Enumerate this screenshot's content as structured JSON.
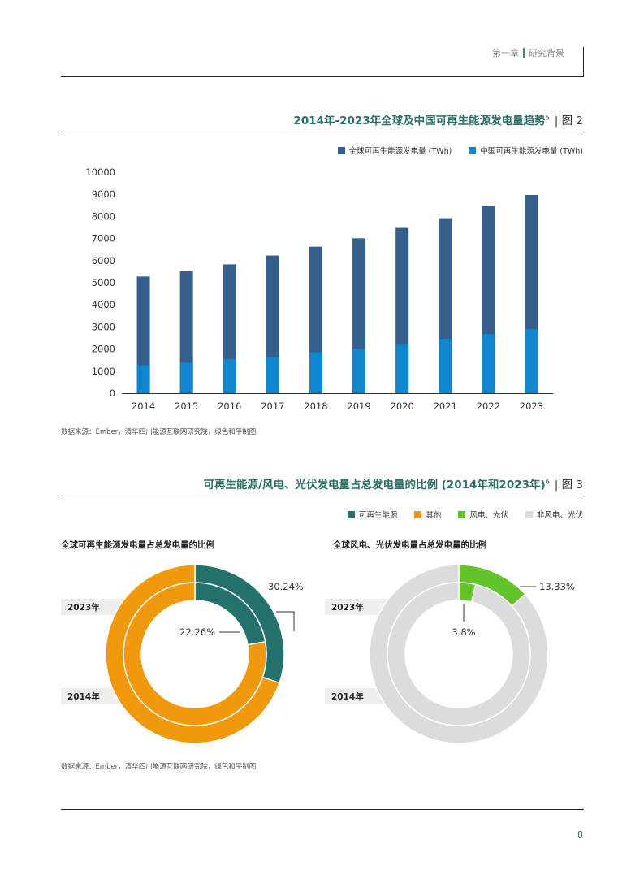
{
  "header": {
    "chapter": "第一章",
    "section": "研究背景"
  },
  "figure2": {
    "title": "2014年-2023年全球及中国可再生能源发电量趋势",
    "footnote": "5",
    "fig_label": "图 2",
    "source": "数据来源：Ember，清华四川能源互联网研究院，绿色和平制图"
  },
  "figure3": {
    "title": "可再生能源/风电、光伏发电量占总发电量的比例 (2014年和2023年)",
    "footnote": "6",
    "fig_label": "图 3",
    "source": "数据来源：Ember，清华四川能源互联网研究院，绿色和平制图",
    "legend": [
      "可再生能源",
      "其他",
      "风电、光伏",
      "非风电、光伏"
    ],
    "left_subtitle": "全球可再生能源发电量占总发电量的比例",
    "right_subtitle": "全球风电、光伏发电量占总发电量的比例",
    "ring_label_outer": "2023年",
    "ring_label_inner": "2014年"
  },
  "page_number": "8",
  "colors": {
    "global": "#35608d",
    "china": "#0f86cf",
    "renewable": "#23726b",
    "other": "#f0990c",
    "wind_solar": "#62c42a",
    "non_wind_solar": "#dcdcdc"
  },
  "chart_data": [
    {
      "type": "bar",
      "categories": [
        "2014",
        "2015",
        "2016",
        "2017",
        "2018",
        "2019",
        "2020",
        "2021",
        "2022",
        "2023"
      ],
      "series": [
        {
          "name": "全球可再生能源发电量 (TWh)",
          "values": [
            5280,
            5530,
            5830,
            6230,
            6630,
            7010,
            7480,
            7920,
            8480,
            8970
          ]
        },
        {
          "name": "中国可再生能源发电量 (TWh)",
          "values": [
            1270,
            1390,
            1550,
            1650,
            1850,
            2010,
            2200,
            2460,
            2680,
            2900
          ]
        }
      ],
      "ylim": [
        0,
        10000
      ],
      "yticks": [
        "0",
        "1000",
        "2000",
        "3000",
        "4000",
        "5000",
        "6000",
        "7000",
        "8000",
        "9000",
        "10000"
      ],
      "grid": false,
      "legend_position": "top-right"
    },
    {
      "type": "pie",
      "title": "全球可再生能源发电量占总发电量的比例",
      "rings": [
        {
          "year": "2023年",
          "labels": [
            "可再生能源",
            "其他"
          ],
          "values": [
            30.24,
            69.76
          ]
        },
        {
          "year": "2014年",
          "labels": [
            "可再生能源",
            "其他"
          ],
          "values": [
            22.26,
            77.74
          ]
        }
      ],
      "annotations": [
        "30.24%",
        "22.26%"
      ]
    },
    {
      "type": "pie",
      "title": "全球风电、光伏发电量占总发电量的比例",
      "rings": [
        {
          "year": "2023年",
          "labels": [
            "风电、光伏",
            "非风电、光伏"
          ],
          "values": [
            13.33,
            86.67
          ]
        },
        {
          "year": "2014年",
          "labels": [
            "风电、光伏",
            "非风电、光伏"
          ],
          "values": [
            3.8,
            96.2
          ]
        }
      ],
      "annotations": [
        "13.33%",
        "3.8%"
      ]
    }
  ]
}
